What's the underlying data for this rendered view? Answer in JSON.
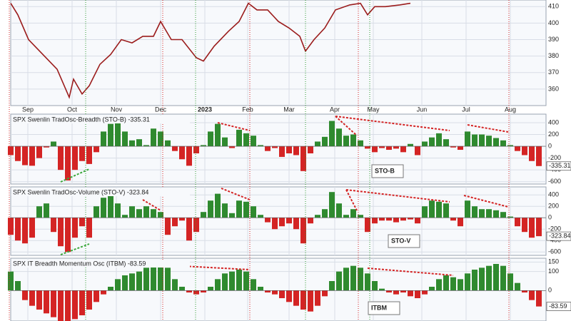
{
  "chart_data": [
    {
      "type": "line",
      "xlim": [
        0,
        375
      ],
      "ylim": [
        350,
        414
      ],
      "yticks": [
        360,
        370,
        380,
        390,
        400,
        410
      ],
      "xticks": [
        {
          "value": 12,
          "label": "Sep"
        },
        {
          "value": 43,
          "label": "Oct"
        },
        {
          "value": 74,
          "label": "Nov"
        },
        {
          "value": 105,
          "label": "Dec"
        },
        {
          "value": 136,
          "label": "2023"
        },
        {
          "value": 166,
          "label": "Feb"
        },
        {
          "value": 195,
          "label": "Mar"
        },
        {
          "value": 227,
          "label": "Apr"
        },
        {
          "value": 254,
          "label": "May"
        },
        {
          "value": 288,
          "label": "Jun"
        },
        {
          "value": 319,
          "label": "Jul"
        },
        {
          "value": 350,
          "label": "Aug"
        }
      ],
      "grid": true,
      "series": [
        {
          "color": "#9b1c1c",
          "x": [
            0,
            5,
            12.5,
            22.5,
            32.5,
            41,
            44,
            50,
            55,
            62.5,
            70,
            77.5,
            85,
            92.5,
            100,
            105,
            112.5,
            120,
            130,
            135,
            142.5,
            152.5,
            160,
            166.5,
            172.5,
            180,
            187.5,
            195,
            202.5,
            206.5,
            212.5,
            220,
            227.5,
            237.5,
            245,
            250,
            255,
            262.5,
            272.5,
            280
          ],
          "values": [
            412,
            405,
            390,
            381,
            372,
            355,
            366,
            357,
            362,
            375,
            381,
            390,
            388,
            392,
            392,
            401,
            390,
            390,
            379,
            377,
            386,
            395,
            401,
            412,
            408,
            408,
            401,
            397,
            392,
            383,
            390,
            397,
            408,
            411,
            412,
            405,
            410,
            410,
            411,
            412
          ]
        }
      ]
    },
    {
      "type": "bar",
      "title": "SPX Swenlin TradOsc-Breadth (STO-B) -335.31",
      "annotation": "STO-B",
      "xlim": [
        0,
        375
      ],
      "ylim": [
        -640,
        545
      ],
      "yticks": [
        400,
        200,
        0,
        -200,
        -400,
        -600
      ],
      "grid": true,
      "color": "#2f8a2f",
      "negative_color": "#d42424",
      "x": [
        0,
        5,
        10,
        15,
        20,
        25,
        30,
        35,
        40,
        45,
        50,
        55,
        60,
        65,
        70,
        75,
        80,
        85,
        90,
        95,
        100,
        105,
        110,
        115,
        120,
        125,
        130,
        135,
        140,
        145,
        150,
        155,
        160,
        165,
        170,
        175,
        180,
        185,
        190,
        195,
        200,
        205,
        210,
        215,
        220,
        225,
        230,
        235,
        240,
        245,
        250,
        255,
        260,
        265,
        270,
        275,
        280,
        285,
        290,
        295,
        300,
        305,
        310,
        315,
        320,
        325,
        330,
        335,
        340,
        345,
        350,
        355,
        360,
        365,
        370
      ],
      "values": [
        -150,
        -250,
        -320,
        -330,
        -200,
        -20,
        80,
        -400,
        -580,
        -400,
        -250,
        -300,
        -100,
        250,
        380,
        430,
        250,
        100,
        120,
        20,
        300,
        250,
        100,
        -80,
        -220,
        -330,
        -120,
        20,
        250,
        380,
        150,
        -30,
        280,
        220,
        180,
        20,
        -80,
        -30,
        -180,
        -120,
        -150,
        -420,
        -120,
        80,
        160,
        430,
        300,
        180,
        200,
        100,
        -40,
        -100,
        -30,
        -60,
        -40,
        -100,
        40,
        -150,
        80,
        150,
        220,
        120,
        -20,
        -60,
        250,
        200,
        200,
        180,
        140,
        100,
        20,
        -80,
        -150,
        -250,
        -335.31
      ]
    },
    {
      "type": "bar",
      "title": "SPX Swenlin TradOsc-Volume (STO-V) -323.84",
      "annotation": "STO-V",
      "xlim": [
        0,
        375
      ],
      "ylim": [
        -660,
        540
      ],
      "yticks": [
        400,
        200,
        0,
        -200,
        -400,
        -600
      ],
      "grid": true,
      "color": "#2f8a2f",
      "negative_color": "#d42424",
      "x": [
        0,
        5,
        10,
        15,
        20,
        25,
        30,
        35,
        40,
        45,
        50,
        55,
        60,
        65,
        70,
        75,
        80,
        85,
        90,
        95,
        100,
        105,
        110,
        115,
        120,
        125,
        130,
        135,
        140,
        145,
        150,
        155,
        160,
        165,
        170,
        175,
        180,
        185,
        190,
        195,
        200,
        205,
        210,
        215,
        220,
        225,
        230,
        235,
        240,
        245,
        250,
        255,
        260,
        265,
        270,
        275,
        280,
        285,
        290,
        295,
        300,
        305,
        310,
        315,
        320,
        325,
        330,
        335,
        340,
        345,
        350,
        355,
        360,
        365,
        370
      ],
      "values": [
        -300,
        -400,
        -450,
        -350,
        200,
        250,
        -250,
        -500,
        -600,
        -350,
        -150,
        -350,
        200,
        350,
        420,
        250,
        50,
        200,
        150,
        200,
        150,
        100,
        -300,
        -150,
        -50,
        -400,
        -250,
        100,
        300,
        420,
        250,
        80,
        300,
        280,
        200,
        50,
        -80,
        -200,
        -150,
        -100,
        -200,
        -450,
        -100,
        50,
        150,
        450,
        250,
        50,
        150,
        50,
        -250,
        -100,
        -50,
        -50,
        -80,
        -50,
        -30,
        -100,
        200,
        300,
        280,
        250,
        -50,
        -150,
        300,
        200,
        150,
        150,
        130,
        100,
        20,
        -150,
        -250,
        -350,
        -323.84
      ]
    },
    {
      "type": "bar",
      "title": "SPX IT Breadth Momentum Osc (ITBM) -83.59",
      "annotation": "ITBM",
      "xlim": [
        0,
        375
      ],
      "ylim": [
        -160,
        170
      ],
      "yticks": [
        150,
        100,
        0
      ],
      "grid": true,
      "color": "#2f8a2f",
      "negative_color": "#d42424",
      "x": [
        0,
        5,
        10,
        15,
        20,
        25,
        30,
        35,
        40,
        45,
        50,
        55,
        60,
        65,
        70,
        75,
        80,
        85,
        90,
        95,
        100,
        105,
        110,
        115,
        120,
        125,
        130,
        135,
        140,
        145,
        150,
        155,
        160,
        165,
        170,
        175,
        180,
        185,
        190,
        195,
        200,
        205,
        210,
        215,
        220,
        225,
        230,
        235,
        240,
        245,
        250,
        255,
        260,
        265,
        270,
        275,
        280,
        285,
        290,
        295,
        300,
        305,
        310,
        315,
        320,
        325,
        330,
        335,
        340,
        345,
        350,
        355,
        360,
        365,
        370
      ],
      "values": [
        100,
        50,
        -50,
        -80,
        -100,
        -120,
        -140,
        -160,
        -160,
        -150,
        -130,
        -100,
        -60,
        -20,
        20,
        60,
        80,
        90,
        100,
        120,
        130,
        140,
        120,
        60,
        20,
        -10,
        -20,
        -10,
        20,
        60,
        90,
        100,
        110,
        100,
        60,
        20,
        -10,
        -20,
        -40,
        -60,
        -80,
        -100,
        -110,
        -80,
        -30,
        50,
        100,
        120,
        130,
        120,
        90,
        50,
        10,
        -10,
        -20,
        -10,
        -30,
        -40,
        -20,
        20,
        60,
        80,
        70,
        60,
        90,
        110,
        120,
        130,
        140,
        130,
        90,
        40,
        -10,
        -50,
        -83.59
      ]
    }
  ]
}
